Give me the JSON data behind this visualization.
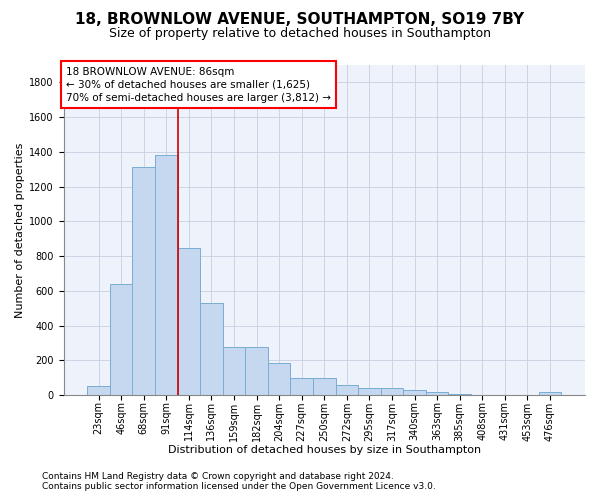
{
  "title1": "18, BROWNLOW AVENUE, SOUTHAMPTON, SO19 7BY",
  "title2": "Size of property relative to detached houses in Southampton",
  "xlabel": "Distribution of detached houses by size in Southampton",
  "ylabel": "Number of detached properties",
  "bar_labels": [
    "23sqm",
    "46sqm",
    "68sqm",
    "91sqm",
    "114sqm",
    "136sqm",
    "159sqm",
    "182sqm",
    "204sqm",
    "227sqm",
    "250sqm",
    "272sqm",
    "295sqm",
    "317sqm",
    "340sqm",
    "363sqm",
    "385sqm",
    "408sqm",
    "431sqm",
    "453sqm",
    "476sqm"
  ],
  "bar_values": [
    50,
    640,
    1310,
    1380,
    848,
    530,
    275,
    275,
    185,
    100,
    100,
    60,
    38,
    38,
    28,
    15,
    5,
    0,
    0,
    0,
    15
  ],
  "bar_color": "#c5d8f0",
  "bar_edgecolor": "#7aadd4",
  "vline_x": 3.5,
  "vline_color": "#cc0000",
  "ylim": [
    0,
    1900
  ],
  "yticks": [
    0,
    200,
    400,
    600,
    800,
    1000,
    1200,
    1400,
    1600,
    1800
  ],
  "annotation_line1": "18 BROWNLOW AVENUE: 86sqm",
  "annotation_line2": "← 30% of detached houses are smaller (1,625)",
  "annotation_line3": "70% of semi-detached houses are larger (3,812) →",
  "footer1": "Contains HM Land Registry data © Crown copyright and database right 2024.",
  "footer2": "Contains public sector information licensed under the Open Government Licence v3.0.",
  "background_color": "#eef2fb",
  "grid_color": "#c8cfe0",
  "title1_fontsize": 11,
  "title2_fontsize": 9,
  "xlabel_fontsize": 8,
  "ylabel_fontsize": 8,
  "tick_fontsize": 7,
  "annotation_fontsize": 7.5,
  "footer_fontsize": 6.5
}
